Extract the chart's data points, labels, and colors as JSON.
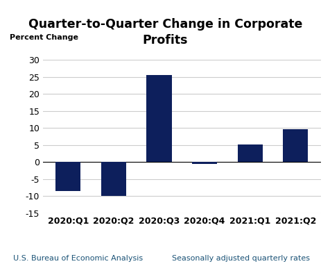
{
  "title_line1": "Quarter-to-Quarter Change in Corporate",
  "title_line2": "Profits",
  "ylabel": "Percent Change",
  "categories": [
    "2020:Q1",
    "2020:Q2",
    "2020:Q3",
    "2020:Q4",
    "2021:Q1",
    "2021:Q2"
  ],
  "values": [
    -8.5,
    -10.0,
    25.5,
    -0.5,
    5.2,
    9.7
  ],
  "bar_color": "#0d1f5c",
  "ylim": [
    -15,
    30
  ],
  "yticks": [
    -15,
    -10,
    -5,
    0,
    5,
    10,
    15,
    20,
    25,
    30
  ],
  "footer_left": "U.S. Bureau of Economic Analysis",
  "footer_right": "Seasonally adjusted quarterly rates",
  "title_fontsize": 12.5,
  "label_fontsize": 8,
  "tick_fontsize": 9,
  "footer_fontsize": 8,
  "background_color": "#ffffff"
}
